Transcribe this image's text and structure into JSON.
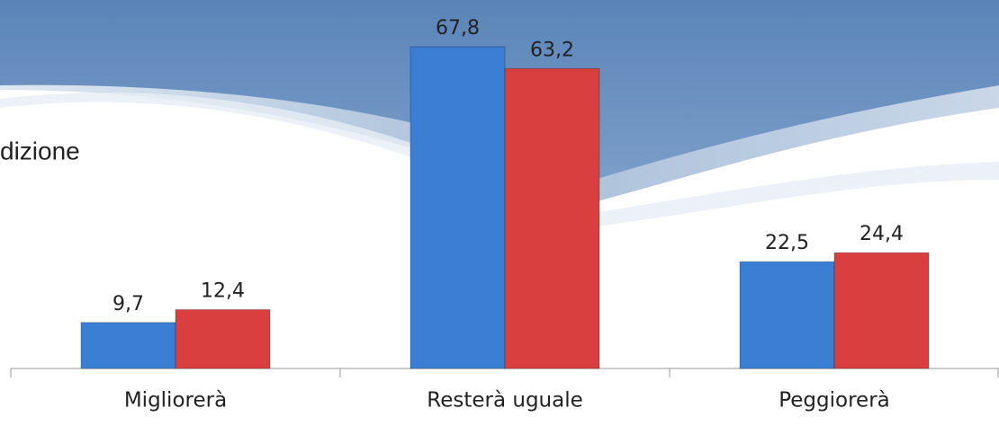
{
  "chart_data": {
    "type": "bar",
    "title": "dizione",
    "categories": [
      "Migliorerà",
      "Resterà uguale",
      "Peggiorerà"
    ],
    "series": [
      {
        "color": "#3b7fd4",
        "values": [
          9.7,
          67.8,
          22.5
        ],
        "value_labels": [
          "9,7",
          "67,8",
          "22,5"
        ]
      },
      {
        "color": "#d93f3f",
        "values": [
          12.4,
          63.2,
          24.4
        ],
        "value_labels": [
          "12,4",
          "63,2",
          "24,4"
        ]
      }
    ]
  }
}
